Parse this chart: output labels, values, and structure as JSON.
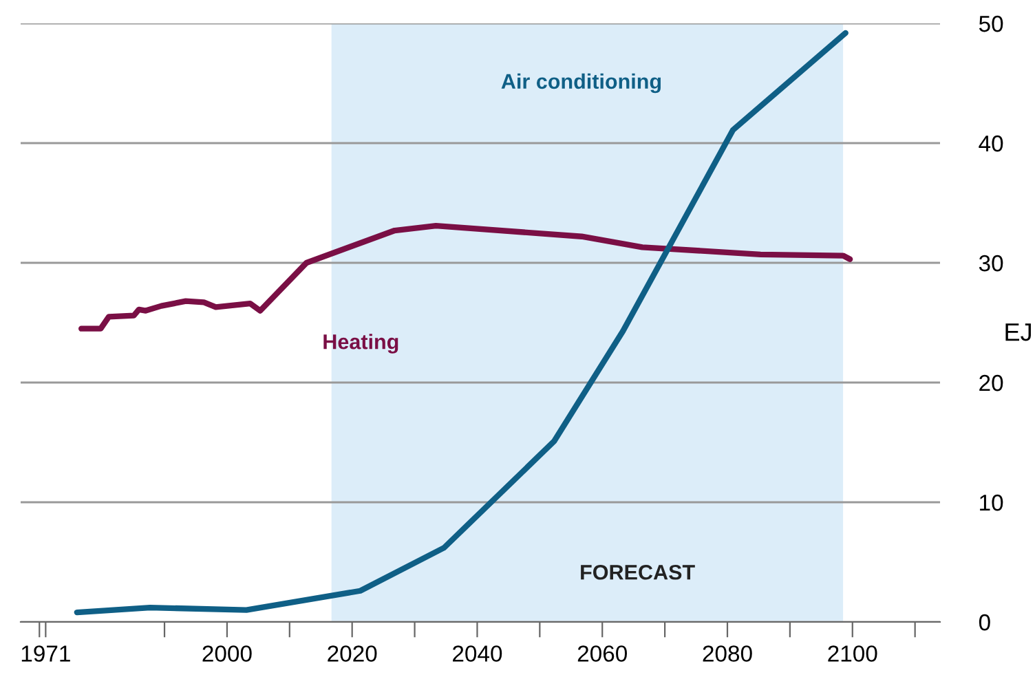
{
  "chart_data": {
    "type": "line",
    "ylabel": "EJ",
    "xlim": [
      1967,
      2114
    ],
    "ylim": [
      0,
      50
    ],
    "xticks": [
      1971,
      2000,
      2020,
      2040,
      2060,
      2080,
      2100,
      {
        "value": 1970,
        "label": null
      },
      {
        "value": 1990,
        "label": null
      },
      {
        "value": 2010,
        "label": null
      },
      {
        "value": 2030,
        "label": null
      },
      {
        "value": 2050,
        "label": null
      },
      {
        "value": 2070,
        "label": null
      },
      {
        "value": 2090,
        "label": null
      },
      {
        "value": 2110,
        "label": null
      }
    ],
    "yticks": [
      0,
      10,
      20,
      30,
      40,
      50
    ],
    "grid": "y",
    "legend": false,
    "bands": [
      {
        "axis": "x",
        "from": 2016.7,
        "to": 2098.5,
        "label": "FORECAST",
        "color": "#dcedf9"
      }
    ],
    "series": [
      {
        "name": "Heating",
        "color": "#7a0f45",
        "x": [
          1976.7,
          1979.8,
          1981.1,
          1985.1,
          1985.9,
          1987.0,
          1989.5,
          1993.4,
          1996.3,
          1998.2,
          2003.7,
          2005.3,
          2012.7,
          2026.8,
          2033.4,
          2056.7,
          2066.4,
          2085.3,
          2098.5,
          2099.6
        ],
        "values": [
          24.5,
          24.5,
          25.5,
          25.6,
          26.1,
          26.0,
          26.4,
          26.8,
          26.7,
          26.3,
          26.6,
          26.0,
          30.0,
          32.7,
          33.1,
          32.2,
          31.3,
          30.7,
          30.6,
          30.3
        ]
      },
      {
        "name": "Air conditioning",
        "color": "#0f5f86",
        "x": [
          1976.0,
          1987.7,
          2003.1,
          2021.3,
          2034.7,
          2052.3,
          2063.3,
          2080.9,
          2098.9
        ],
        "values": [
          0.8,
          1.2,
          1.0,
          2.6,
          6.2,
          15.1,
          24.3,
          41.1,
          49.2
        ]
      }
    ]
  }
}
